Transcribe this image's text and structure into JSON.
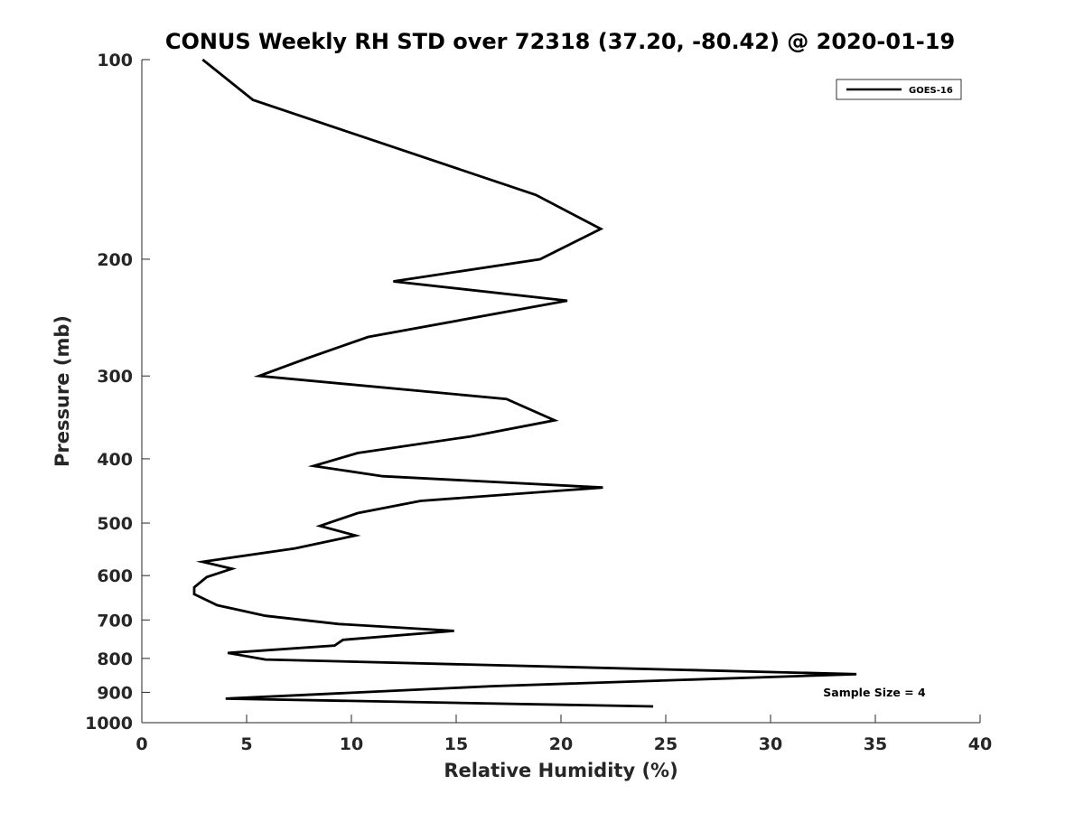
{
  "chart_data": {
    "type": "line",
    "title": "CONUS Weekly RH STD over 72318 (37.20, -80.42) @ 2020-01-19",
    "xlabel": "Relative Humidity (%)",
    "ylabel": "Pressure (mb)",
    "xlim": [
      0,
      40
    ],
    "ylim": [
      100,
      1000
    ],
    "yscale": "log",
    "y_reversed": true,
    "grid": false,
    "xticks": [
      0,
      5,
      10,
      15,
      20,
      25,
      30,
      35,
      40
    ],
    "xtick_labels": [
      "0",
      "5",
      "10",
      "15",
      "20",
      "25",
      "30",
      "35",
      "40"
    ],
    "yticks": [
      100,
      200,
      300,
      400,
      500,
      600,
      700,
      800,
      900,
      1000
    ],
    "ytick_labels": [
      "100",
      "200",
      "300",
      "400",
      "500",
      "600",
      "700",
      "800",
      "900",
      "1000"
    ],
    "legend_position": "top-right",
    "annotation": "Sample Size = 4",
    "series": [
      {
        "name": "GOES-16",
        "color": "#000000",
        "x": [
          2.9,
          5.3,
          10.3,
          18.8,
          21.9,
          19.0,
          12.0,
          20.3,
          10.8,
          7.9,
          5.6,
          17.4,
          19.7,
          15.7,
          10.3,
          8.2,
          11.5,
          22.0,
          13.3,
          10.3,
          8.5,
          10.2,
          7.3,
          2.9,
          4.3,
          3.1,
          2.5,
          2.5,
          3.6,
          5.9,
          9.4,
          14.9,
          9.6,
          9.2,
          4.1,
          5.9,
          34.1,
          16.7,
          4.0,
          24.4
        ],
        "y": [
          100,
          115,
          130,
          160,
          180,
          200,
          216,
          231,
          262,
          282,
          300,
          325,
          350,
          370,
          392,
          410,
          425,
          442,
          463,
          483,
          505,
          522,
          546,
          572,
          586,
          603,
          625,
          640,
          665,
          690,
          710,
          727,
          750,
          765,
          785,
          803,
          845,
          881,
          920,
          945
        ]
      }
    ]
  }
}
